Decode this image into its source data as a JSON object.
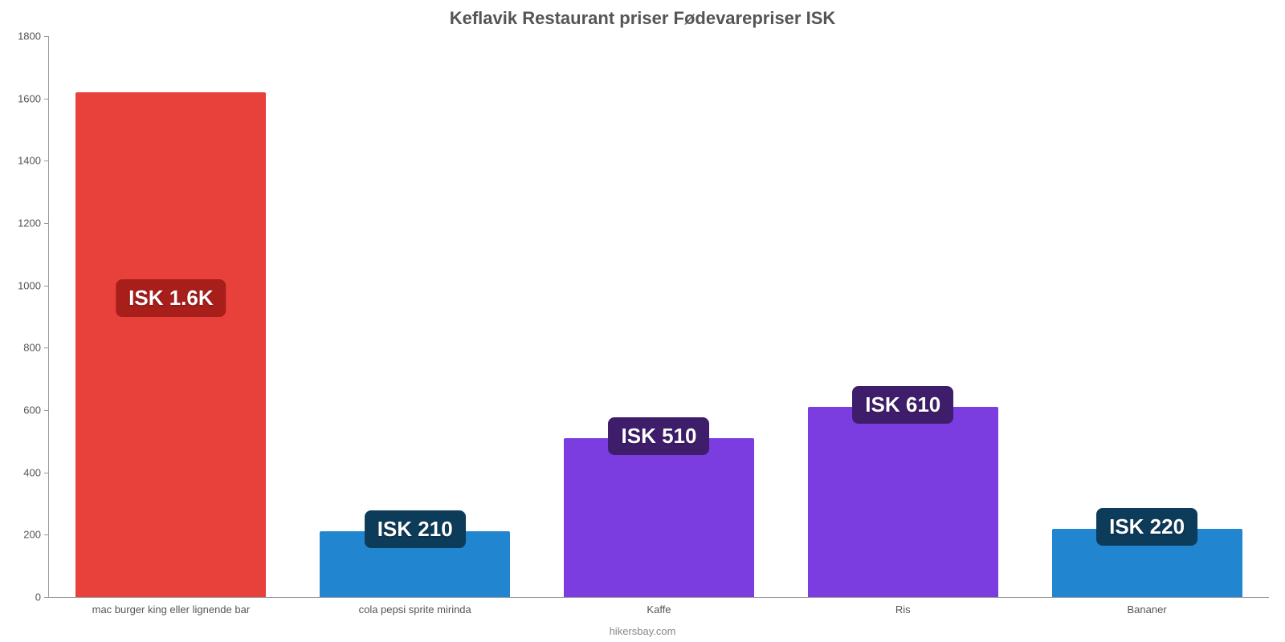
{
  "chart": {
    "type": "bar",
    "title": "Keflavik Restaurant priser Fødevarepriser ISK",
    "title_fontsize": 22,
    "title_color": "#555555",
    "background_color": "#ffffff",
    "axis_color": "#999999",
    "categories": [
      "mac burger king eller lignende bar",
      "cola pepsi sprite mirinda",
      "Kaffe",
      "Ris",
      "Bananer"
    ],
    "values": [
      1620,
      210,
      510,
      610,
      220
    ],
    "value_labels": [
      "ISK 1.6K",
      "ISK 210",
      "ISK 510",
      "ISK 610",
      "ISK 220"
    ],
    "bar_colors": [
      "#e8403b",
      "#2185d0",
      "#7b3ce0",
      "#7b3ce0",
      "#2185d0"
    ],
    "badge_colors": [
      "#a81e1a",
      "#0d3b5a",
      "#3e1d6b",
      "#3e1d6b",
      "#0d3b5a"
    ],
    "badge_text_color": "#ffffff",
    "ylim": [
      0,
      1800
    ],
    "ytick_step": 200,
    "yticks": [
      0,
      200,
      400,
      600,
      800,
      1000,
      1200,
      1400,
      1600,
      1800
    ],
    "label_fontsize": 13,
    "label_color": "#555555",
    "value_fontsize": 26,
    "bar_width_pct": 78,
    "footer": "hikersbay.com",
    "footer_color": "#888888"
  }
}
